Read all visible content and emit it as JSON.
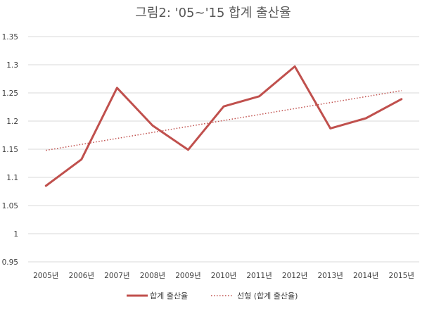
{
  "chart_data": {
    "type": "line",
    "title": "그림2: '05~'15 합계 출산율",
    "categories": [
      "2005년",
      "2006년",
      "2007년",
      "2008년",
      "2009년",
      "2010년",
      "2011년",
      "2012년",
      "2013년",
      "2014년",
      "2015년"
    ],
    "series": [
      {
        "name": "합계 출산율",
        "values": [
          1.085,
          1.132,
          1.259,
          1.192,
          1.149,
          1.226,
          1.244,
          1.297,
          1.187,
          1.205,
          1.239
        ],
        "color": "#c0504d",
        "style": "solid"
      },
      {
        "name": "선형 (합계 출산율)",
        "values": [
          1.148,
          1.1586,
          1.1692,
          1.1798,
          1.1904,
          1.201,
          1.2116,
          1.2222,
          1.2328,
          1.2434,
          1.254
        ],
        "color": "#c0504d",
        "style": "dotted"
      }
    ],
    "ylim": [
      0.95,
      1.35
    ],
    "yticks": [
      "0.95",
      "1",
      "1.05",
      "1.1",
      "1.15",
      "1.2",
      "1.25",
      "1.3",
      "1.35"
    ],
    "grid": true,
    "legend_position": "bottom"
  }
}
